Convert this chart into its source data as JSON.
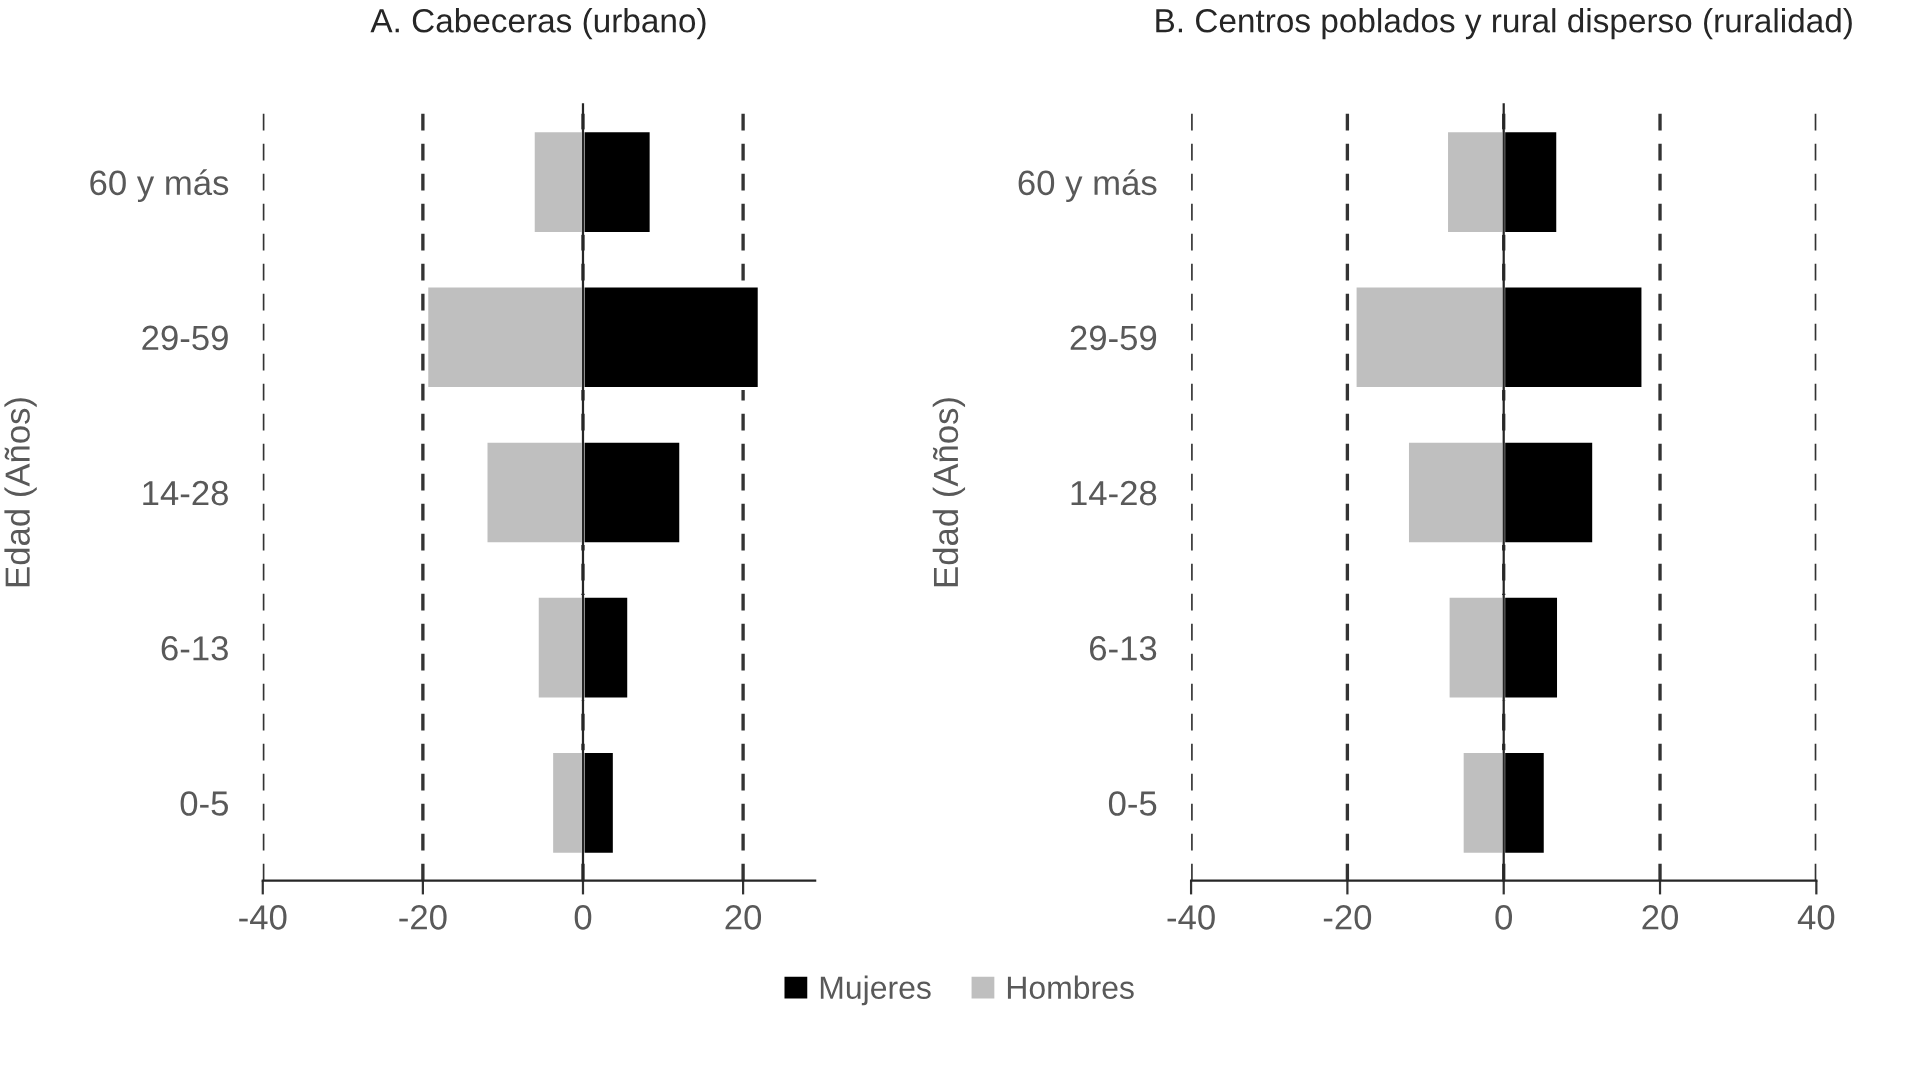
{
  "chart_data": [
    {
      "type": "bar",
      "orientation": "horizontal",
      "stacked": true,
      "title": "A. Cabeceras (urbano)",
      "ylabel": "Edad (Años)",
      "categories": [
        "60 y más",
        "29-59",
        "14-28",
        "6-13",
        "0-5"
      ],
      "series": [
        {
          "name": "Mujeres",
          "color": "#000000",
          "values": [
            8.5,
            22,
            12.2,
            5.7,
            3.9
          ]
        },
        {
          "name": "Hombres",
          "color": "#bfbfbf",
          "values": [
            -6.2,
            -19.5,
            -12.1,
            -5.7,
            -3.9
          ]
        }
      ],
      "xlim": [
        -40,
        29
      ],
      "xticks": [
        -40,
        -20,
        0,
        20
      ],
      "grid": "x",
      "legend": "bottom"
    },
    {
      "type": "bar",
      "orientation": "horizontal",
      "stacked": true,
      "title": "B. Centros poblados y rural disperso (ruralidad)",
      "ylabel": "Edad (Años)",
      "categories": [
        "60 y más",
        "29-59",
        "14-28",
        "6-13",
        "0-5"
      ],
      "series": [
        {
          "name": "Mujeres",
          "color": "#000000",
          "values": [
            6.9,
            17.8,
            11.5,
            7.0,
            5.3
          ]
        },
        {
          "name": "Hombres",
          "color": "#bfbfbf",
          "values": [
            -7.3,
            -19.0,
            -12.3,
            -7.1,
            -5.3
          ]
        }
      ],
      "xlim": [
        -40,
        40
      ],
      "xticks": [
        -40,
        -20,
        0,
        20,
        40
      ],
      "grid": "x",
      "legend": "bottom"
    }
  ]
}
